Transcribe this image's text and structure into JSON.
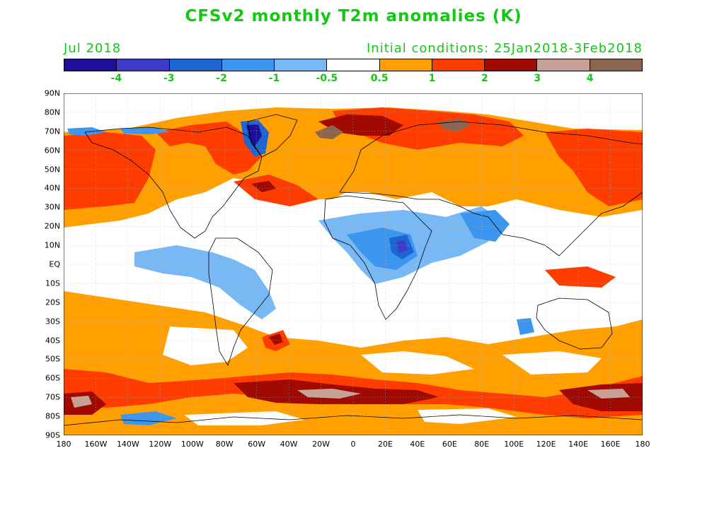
{
  "title": "CFSv2 monthly T2m anomalies (K)",
  "target_month": "Jul 2018",
  "initial_conditions": "Initial conditions: 25Jan2018-3Feb2018",
  "colorbar": {
    "colors": [
      "#1e0e9c",
      "#3c3cc8",
      "#1e64d2",
      "#3c96f0",
      "#78b9f5",
      "#ffffff",
      "#ffa000",
      "#ff3c00",
      "#a00a00",
      "#c8a096",
      "#8c6450"
    ],
    "labels": [
      "-4",
      "-3",
      "-2",
      "-1",
      "-0.5",
      "0.5",
      "1",
      "2",
      "3",
      "4"
    ]
  },
  "lat_labels": [
    "90N",
    "80N",
    "70N",
    "60N",
    "50N",
    "40N",
    "30N",
    "20N",
    "10N",
    "EQ",
    "10S",
    "20S",
    "30S",
    "40S",
    "50S",
    "60S",
    "70S",
    "80S",
    "90S"
  ],
  "lon_labels": [
    "180",
    "160W",
    "140W",
    "120W",
    "100W",
    "80W",
    "60W",
    "40W",
    "20W",
    "0",
    "20E",
    "40E",
    "60E",
    "80E",
    "100E",
    "120E",
    "140E",
    "160E",
    "180"
  ]
}
